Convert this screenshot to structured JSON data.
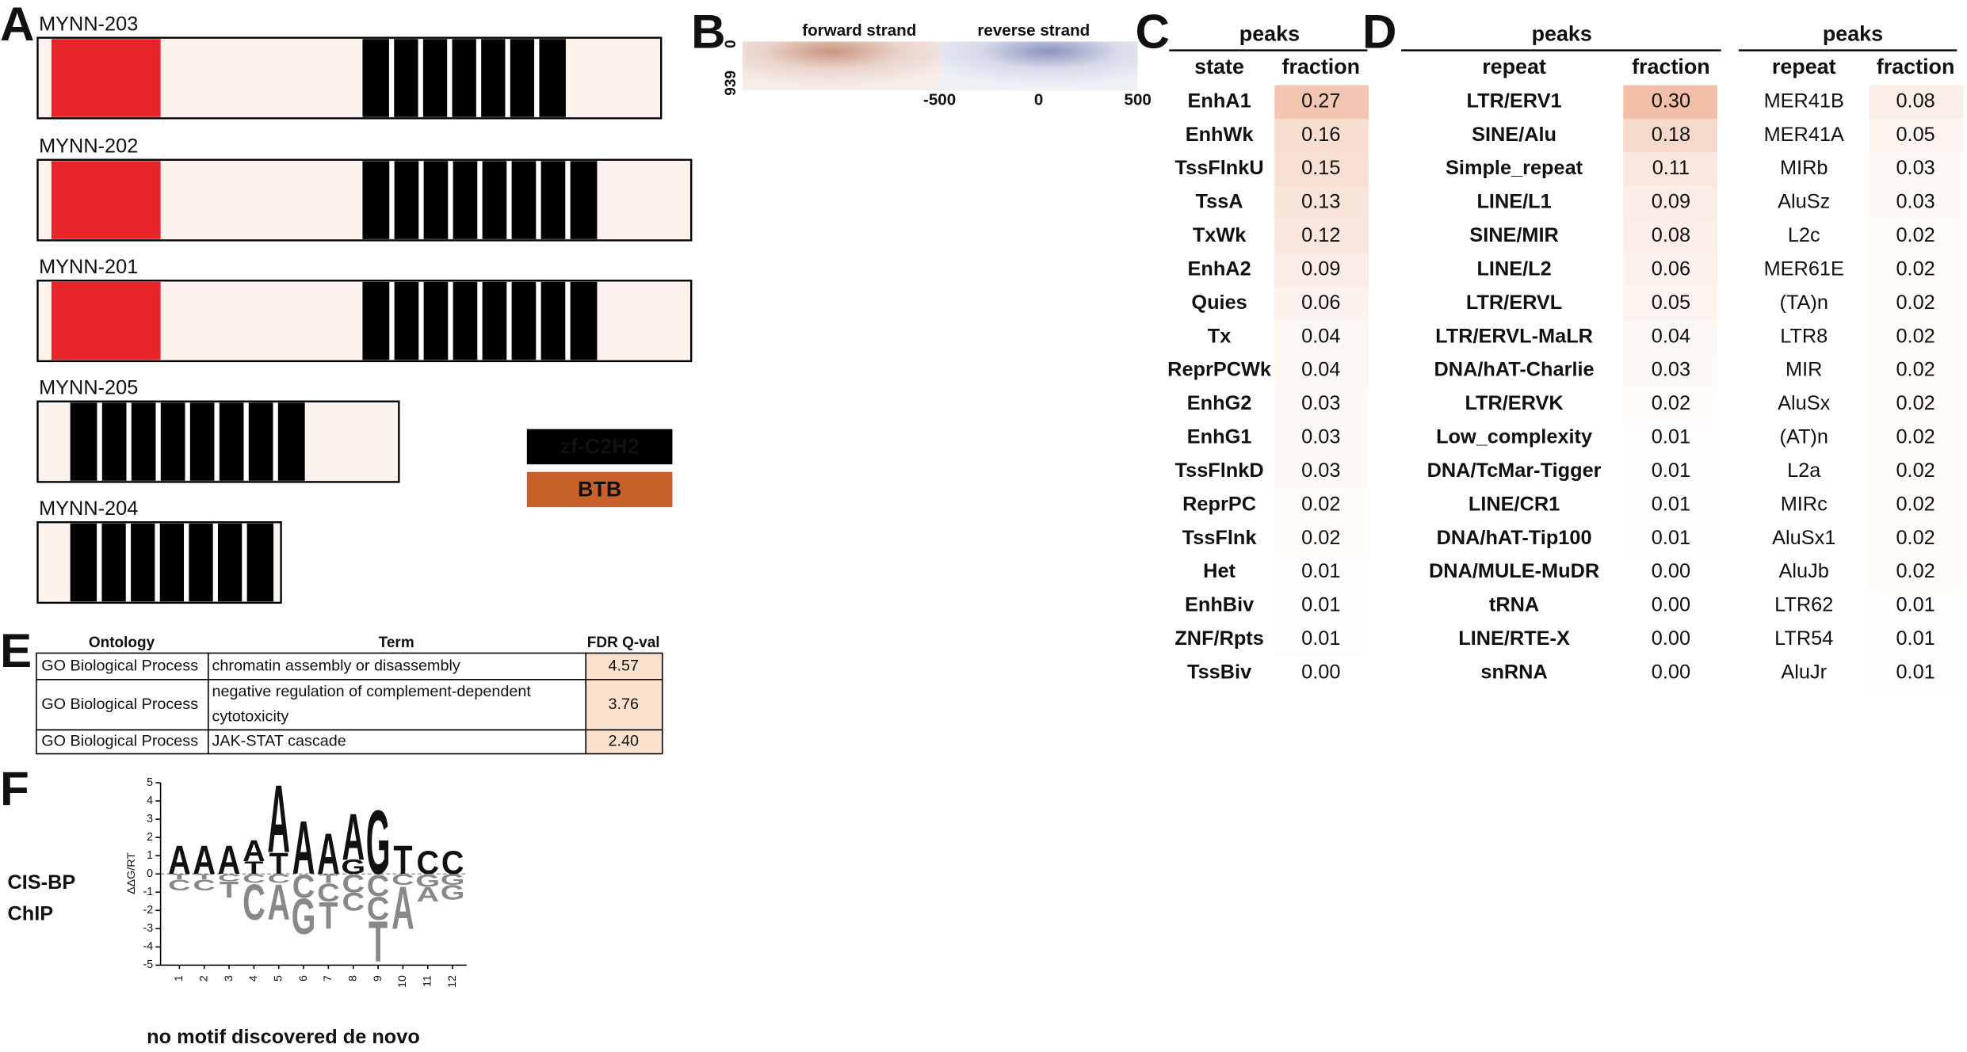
{
  "panel_a": {
    "label": "A",
    "transcripts": [
      "MYNN-203",
      "MYNN-202",
      "MYNN-201",
      "MYNN-205",
      "MYNN-204"
    ],
    "legend": [
      "zf-C2H2",
      "BTB"
    ]
  },
  "panel_b": {
    "label": "B",
    "titles": [
      "forward strand",
      "reverse strand"
    ],
    "yticks": [
      "0",
      "939"
    ],
    "xticks": [
      "-500",
      "0",
      "500"
    ]
  },
  "panel_c": {
    "label": "C",
    "header": "peaks",
    "columns": [
      "state",
      "fraction"
    ],
    "rows": [
      [
        "EnhA1",
        "0.27"
      ],
      [
        "EnhWk",
        "0.16"
      ],
      [
        "TssFlnkU",
        "0.15"
      ],
      [
        "TssA",
        "0.13"
      ],
      [
        "TxWk",
        "0.12"
      ],
      [
        "EnhA2",
        "0.09"
      ],
      [
        "Quies",
        "0.06"
      ],
      [
        "Tx",
        "0.04"
      ],
      [
        "ReprPCWk",
        "0.04"
      ],
      [
        "EnhG2",
        "0.03"
      ],
      [
        "EnhG1",
        "0.03"
      ],
      [
        "TssFlnkD",
        "0.03"
      ],
      [
        "ReprPC",
        "0.02"
      ],
      [
        "TssFlnk",
        "0.02"
      ],
      [
        "Het",
        "0.01"
      ],
      [
        "EnhBiv",
        "0.01"
      ],
      [
        "ZNF/Rpts",
        "0.01"
      ],
      [
        "TssBiv",
        "0.00"
      ]
    ]
  },
  "panel_d": {
    "label": "D",
    "tables": [
      {
        "header": "peaks",
        "columns": [
          "repeat",
          "fraction"
        ],
        "rows": [
          [
            "LTR/ERV1",
            "0.30"
          ],
          [
            "SINE/Alu",
            "0.18"
          ],
          [
            "Simple_repeat",
            "0.11"
          ],
          [
            "LINE/L1",
            "0.09"
          ],
          [
            "SINE/MIR",
            "0.08"
          ],
          [
            "LINE/L2",
            "0.06"
          ],
          [
            "LTR/ERVL",
            "0.05"
          ],
          [
            "LTR/ERVL-MaLR",
            "0.04"
          ],
          [
            "DNA/hAT-Charlie",
            "0.03"
          ],
          [
            "LTR/ERVK",
            "0.02"
          ],
          [
            "Low_complexity",
            "0.01"
          ],
          [
            "DNA/TcMar-Tigger",
            "0.01"
          ],
          [
            "LINE/CR1",
            "0.01"
          ],
          [
            "DNA/hAT-Tip100",
            "0.01"
          ],
          [
            "DNA/MULE-MuDR",
            "0.00"
          ],
          [
            "tRNA",
            "0.00"
          ],
          [
            "LINE/RTE-X",
            "0.00"
          ],
          [
            "snRNA",
            "0.00"
          ]
        ]
      },
      {
        "header": "peaks",
        "columns": [
          "repeat",
          "fraction"
        ],
        "rows": [
          [
            "MER41B",
            "0.08"
          ],
          [
            "MER41A",
            "0.05"
          ],
          [
            "MIRb",
            "0.03"
          ],
          [
            "AluSz",
            "0.03"
          ],
          [
            "L2c",
            "0.02"
          ],
          [
            "MER61E",
            "0.02"
          ],
          [
            "(TA)n",
            "0.02"
          ],
          [
            "LTR8",
            "0.02"
          ],
          [
            "MIR",
            "0.02"
          ],
          [
            "AluSx",
            "0.02"
          ],
          [
            "(AT)n",
            "0.02"
          ],
          [
            "L2a",
            "0.02"
          ],
          [
            "MIRc",
            "0.02"
          ],
          [
            "AluSx1",
            "0.02"
          ],
          [
            "AluJb",
            "0.02"
          ],
          [
            "LTR62",
            "0.01"
          ],
          [
            "LTR54",
            "0.01"
          ],
          [
            "AluJr",
            "0.01"
          ]
        ]
      }
    ]
  },
  "panel_e": {
    "label": "E",
    "columns": [
      "Ontology",
      "Term",
      "FDR Q-val"
    ],
    "rows": [
      [
        "GO Biological Process",
        [
          "chromatin assembly or disassembly"
        ],
        "4.57"
      ],
      [
        "GO Biological Process",
        [
          "negative regulation of complement-dependent",
          "cytotoxicity"
        ],
        "3.76"
      ],
      [
        "GO Biological Process",
        [
          "JAK-STAT cascade"
        ],
        "2.40"
      ]
    ]
  },
  "panel_f": {
    "label": "F",
    "source": [
      "CIS-BP",
      "ChIP"
    ],
    "footer": "no motif discovered de novo",
    "logo": {
      "y_label": "ΔΔG/RT",
      "ylim": [
        -5,
        5
      ],
      "yticks": [
        -5,
        -4,
        -3,
        -2,
        -1,
        0,
        1,
        2,
        3,
        4,
        5
      ],
      "xticks": [
        1,
        2,
        3,
        4,
        5,
        6,
        7,
        8,
        9,
        10,
        11,
        12
      ],
      "colors": {
        "A": "#3bb54a",
        "C": "#3a4ea8",
        "G": "#f5b51c",
        "T": "#d9262a"
      },
      "columns": [
        {
          "pos": [
            {
              "base": "A",
              "height": 1.6
            }
          ],
          "neg": [
            {
              "base": "T",
              "height": 0.3
            },
            {
              "base": "C",
              "height": 0.6
            }
          ]
        },
        {
          "pos": [
            {
              "base": "A",
              "height": 1.6
            }
          ],
          "neg": [
            {
              "base": "T",
              "height": 0.3
            },
            {
              "base": "C",
              "height": 0.6
            }
          ]
        },
        {
          "pos": [
            {
              "base": "A",
              "height": 1.6
            }
          ],
          "neg": [
            {
              "base": "C",
              "height": 0.4
            },
            {
              "base": "T",
              "height": 0.9
            }
          ]
        },
        {
          "pos": [
            {
              "base": "T",
              "height": 0.7
            },
            {
              "base": "A",
              "height": 1.2
            }
          ],
          "neg": [
            {
              "base": "C",
              "height": 0.5
            },
            {
              "base": "C",
              "height": 2.0
            }
          ]
        },
        {
          "pos": [
            {
              "base": "T",
              "height": 1.2
            },
            {
              "base": "A",
              "height": 3.8
            }
          ],
          "neg": [
            {
              "base": "C",
              "height": 0.5
            },
            {
              "base": "A",
              "height": 2.0
            }
          ]
        },
        {
          "pos": [
            {
              "base": "A",
              "height": 3.0
            }
          ],
          "neg": [
            {
              "base": "C",
              "height": 1.3
            },
            {
              "base": "G",
              "height": 2.0
            }
          ]
        },
        {
          "pos": [
            {
              "base": "A",
              "height": 2.3
            }
          ],
          "neg": [
            {
              "base": "T",
              "height": 0.5
            },
            {
              "base": "C",
              "height": 1.0
            },
            {
              "base": "T",
              "height": 1.5
            }
          ]
        },
        {
          "pos": [
            {
              "base": "G",
              "height": 0.8
            },
            {
              "base": "A",
              "height": 2.6
            }
          ],
          "neg": [
            {
              "base": "C",
              "height": 1.0
            },
            {
              "base": "C",
              "height": 1.0
            }
          ]
        },
        {
          "pos": [
            {
              "base": "G",
              "height": 3.6
            }
          ],
          "neg": [
            {
              "base": "C",
              "height": 1.2
            },
            {
              "base": "C",
              "height": 1.3
            },
            {
              "base": "T",
              "height": 2.3
            }
          ]
        },
        {
          "pos": [
            {
              "base": "T",
              "height": 1.6
            }
          ],
          "neg": [
            {
              "base": "C",
              "height": 0.6
            },
            {
              "base": "A",
              "height": 2.4
            }
          ]
        },
        {
          "pos": [
            {
              "base": "C",
              "height": 1.3
            }
          ],
          "neg": [
            {
              "base": "G",
              "height": 0.7
            },
            {
              "base": "A",
              "height": 0.8
            }
          ]
        },
        {
          "pos": [
            {
              "base": "C",
              "height": 1.3
            }
          ],
          "neg": [
            {
              "base": "G",
              "height": 0.6
            },
            {
              "base": "G",
              "height": 0.8
            }
          ]
        }
      ]
    }
  }
}
